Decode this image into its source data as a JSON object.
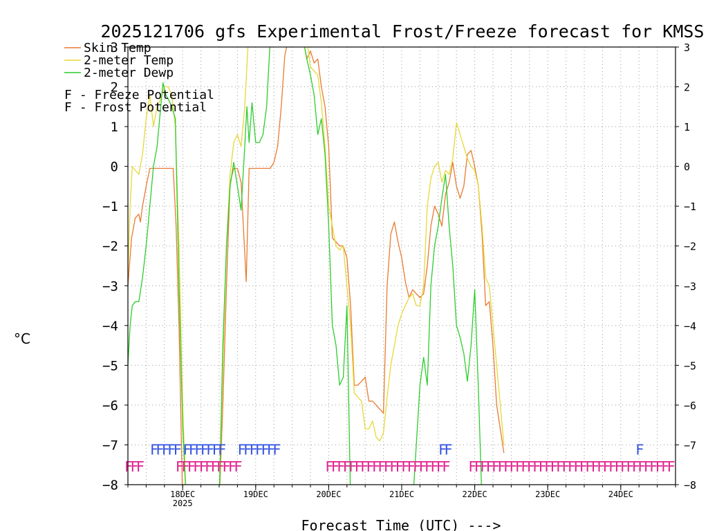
{
  "chart_data": {
    "type": "line",
    "title": "2025121706 gfs Experimental Frost/Freeze forecast for KMSS",
    "ylabel": "°C",
    "xlabel": "Forecast Time (UTC) --->",
    "ylim": [
      -8,
      3
    ],
    "xlim": [
      0,
      7.5
    ],
    "yticks": [
      3,
      2,
      1,
      0,
      -1,
      -2,
      -3,
      -4,
      -5,
      -6,
      -7,
      -8
    ],
    "ytick_labels_left": [
      "3",
      "2",
      "1",
      "0",
      "−1",
      "−2",
      "−3",
      "−4",
      "−5",
      "−6",
      "−7",
      "−8"
    ],
    "ytick_labels_right": [
      "3",
      "2",
      "1",
      "0",
      "−1",
      "−2",
      "−3",
      "−4",
      "−5",
      "−6",
      "−7",
      "−8"
    ],
    "xticks": [
      {
        "x": 0.75,
        "label": "18DEC",
        "sublabel": "2025"
      },
      {
        "x": 1.75,
        "label": "19DEC",
        "sublabel": ""
      },
      {
        "x": 2.75,
        "label": "20DEC",
        "sublabel": ""
      },
      {
        "x": 3.75,
        "label": "21DEC",
        "sublabel": ""
      },
      {
        "x": 4.75,
        "label": "22DEC",
        "sublabel": ""
      },
      {
        "x": 5.75,
        "label": "23DEC",
        "sublabel": ""
      },
      {
        "x": 6.75,
        "label": "24DEC",
        "sublabel": ""
      }
    ],
    "grid": true,
    "x_units": "days since 2025-12-17 06 UTC",
    "legend": [
      {
        "label": "Skin Temp",
        "color": "#e87a30"
      },
      {
        "label": "2-meter Temp",
        "color": "#e6d838"
      },
      {
        "label": "2-meter Dewp",
        "color": "#2ccc2c"
      }
    ],
    "flag_legend": [
      {
        "glyph": "F",
        "label": " - Freeze Potential",
        "color": "#e0208c"
      },
      {
        "glyph": "F",
        "label": " - Frost Potential",
        "color": "#3050e0"
      }
    ],
    "series": [
      {
        "name": "Skin Temp",
        "color": "#e87a30",
        "points": [
          [
            0,
            -3.0
          ],
          [
            0.05,
            -1.8
          ],
          [
            0.1,
            -1.3
          ],
          [
            0.15,
            -1.2
          ],
          [
            0.17,
            -1.4
          ],
          [
            0.2,
            -1.0
          ],
          [
            0.25,
            -0.5
          ],
          [
            0.3,
            -0.05
          ],
          [
            0.35,
            -0.05
          ],
          [
            0.45,
            -0.05
          ],
          [
            0.55,
            -0.05
          ],
          [
            0.62,
            -0.05
          ],
          [
            0.66,
            -1.5
          ],
          [
            0.7,
            -4.0
          ],
          [
            0.75,
            -8.5
          ],
          [
            1.25,
            -8.5
          ],
          [
            1.3,
            -6.0
          ],
          [
            1.35,
            -3.0
          ],
          [
            1.4,
            -0.4
          ],
          [
            1.45,
            -0.05
          ],
          [
            1.5,
            -0.05
          ],
          [
            1.55,
            -0.4
          ],
          [
            1.62,
            -2.9
          ],
          [
            1.66,
            -0.05
          ],
          [
            1.75,
            -0.05
          ],
          [
            1.85,
            -0.05
          ],
          [
            1.95,
            -0.05
          ],
          [
            2.0,
            0.1
          ],
          [
            2.05,
            0.5
          ],
          [
            2.1,
            1.5
          ],
          [
            2.15,
            2.8
          ],
          [
            2.2,
            3.2
          ],
          [
            2.4,
            3.2
          ],
          [
            2.45,
            2.7
          ],
          [
            2.5,
            2.9
          ],
          [
            2.55,
            2.6
          ],
          [
            2.6,
            2.7
          ],
          [
            2.65,
            2.0
          ],
          [
            2.7,
            1.5
          ],
          [
            2.75,
            0.5
          ],
          [
            2.8,
            -1.8
          ],
          [
            2.85,
            -1.9
          ],
          [
            2.9,
            -2.0
          ],
          [
            2.95,
            -2.0
          ],
          [
            3.0,
            -2.3
          ],
          [
            3.05,
            -3.5
          ],
          [
            3.1,
            -5.5
          ],
          [
            3.15,
            -5.5
          ],
          [
            3.2,
            -5.4
          ],
          [
            3.25,
            -5.3
          ],
          [
            3.3,
            -5.9
          ],
          [
            3.35,
            -5.9
          ],
          [
            3.4,
            -6.0
          ],
          [
            3.45,
            -6.1
          ],
          [
            3.5,
            -6.2
          ],
          [
            3.55,
            -3.0
          ],
          [
            3.6,
            -1.7
          ],
          [
            3.65,
            -1.4
          ],
          [
            3.7,
            -1.9
          ],
          [
            3.75,
            -2.3
          ],
          [
            3.8,
            -2.9
          ],
          [
            3.85,
            -3.3
          ],
          [
            3.9,
            -3.1
          ],
          [
            3.95,
            -3.2
          ],
          [
            4.0,
            -3.3
          ],
          [
            4.05,
            -3.2
          ],
          [
            4.1,
            -2.5
          ],
          [
            4.15,
            -1.5
          ],
          [
            4.2,
            -1.0
          ],
          [
            4.25,
            -1.2
          ],
          [
            4.3,
            -1.5
          ],
          [
            4.35,
            -0.7
          ],
          [
            4.4,
            -0.4
          ],
          [
            4.45,
            0.1
          ],
          [
            4.5,
            -0.5
          ],
          [
            4.55,
            -0.8
          ],
          [
            4.6,
            -0.5
          ],
          [
            4.65,
            0.3
          ],
          [
            4.7,
            0.4
          ],
          [
            4.75,
            0.0
          ],
          [
            4.8,
            -0.5
          ],
          [
            4.85,
            -1.7
          ],
          [
            4.9,
            -3.5
          ],
          [
            4.95,
            -3.4
          ],
          [
            5.0,
            -4.5
          ],
          [
            5.05,
            -6.0
          ],
          [
            5.1,
            -6.6
          ],
          [
            5.15,
            -7.2
          ]
        ]
      },
      {
        "name": "2-meter Temp",
        "color": "#e6d838",
        "points": [
          [
            0,
            -2.7
          ],
          [
            0.03,
            -1.0
          ],
          [
            0.06,
            0.0
          ],
          [
            0.1,
            -0.1
          ],
          [
            0.15,
            -0.2
          ],
          [
            0.2,
            0.3
          ],
          [
            0.25,
            1.2
          ],
          [
            0.3,
            1.8
          ],
          [
            0.35,
            1.0
          ],
          [
            0.4,
            1.5
          ],
          [
            0.45,
            1.7
          ],
          [
            0.5,
            2.0
          ],
          [
            0.55,
            2.0
          ],
          [
            0.6,
            1.8
          ],
          [
            0.65,
            1.0
          ],
          [
            0.7,
            -2.0
          ],
          [
            0.75,
            -6.0
          ],
          [
            0.8,
            -8.5
          ],
          [
            1.25,
            -8.5
          ],
          [
            1.3,
            -5.0
          ],
          [
            1.35,
            -2.0
          ],
          [
            1.4,
            -0.2
          ],
          [
            1.45,
            0.6
          ],
          [
            1.5,
            0.8
          ],
          [
            1.55,
            0.5
          ],
          [
            1.6,
            1.5
          ],
          [
            1.65,
            3.2
          ],
          [
            2.35,
            3.2
          ],
          [
            2.4,
            3.0
          ],
          [
            2.45,
            3.2
          ],
          [
            2.5,
            2.5
          ],
          [
            2.55,
            2.4
          ],
          [
            2.6,
            2.3
          ],
          [
            2.65,
            1.6
          ],
          [
            2.7,
            0.5
          ],
          [
            2.75,
            -1.0
          ],
          [
            2.8,
            -1.5
          ],
          [
            2.85,
            -2.0
          ],
          [
            2.9,
            -2.1
          ],
          [
            2.95,
            -2.0
          ],
          [
            3.0,
            -3.0
          ],
          [
            3.05,
            -4.0
          ],
          [
            3.1,
            -5.7
          ],
          [
            3.15,
            -5.8
          ],
          [
            3.2,
            -5.9
          ],
          [
            3.25,
            -6.6
          ],
          [
            3.3,
            -6.6
          ],
          [
            3.35,
            -6.4
          ],
          [
            3.4,
            -6.8
          ],
          [
            3.45,
            -6.9
          ],
          [
            3.5,
            -6.7
          ],
          [
            3.55,
            -5.8
          ],
          [
            3.6,
            -5.0
          ],
          [
            3.65,
            -4.5
          ],
          [
            3.7,
            -4.0
          ],
          [
            3.75,
            -3.7
          ],
          [
            3.8,
            -3.5
          ],
          [
            3.85,
            -3.3
          ],
          [
            3.9,
            -3.2
          ],
          [
            3.95,
            -3.5
          ],
          [
            4.0,
            -3.5
          ],
          [
            4.05,
            -3.0
          ],
          [
            4.1,
            -1.0
          ],
          [
            4.15,
            -0.3
          ],
          [
            4.2,
            0.0
          ],
          [
            4.25,
            0.1
          ],
          [
            4.3,
            -0.4
          ],
          [
            4.35,
            -0.1
          ],
          [
            4.4,
            -0.2
          ],
          [
            4.45,
            0.2
          ],
          [
            4.5,
            1.1
          ],
          [
            4.55,
            0.8
          ],
          [
            4.6,
            0.5
          ],
          [
            4.65,
            0.2
          ],
          [
            4.7,
            0.0
          ],
          [
            4.75,
            -0.1
          ],
          [
            4.8,
            -0.5
          ],
          [
            4.85,
            -1.5
          ],
          [
            4.9,
            -2.8
          ],
          [
            4.95,
            -3.0
          ],
          [
            5.0,
            -4.0
          ],
          [
            5.05,
            -5.0
          ],
          [
            5.1,
            -6.0
          ],
          [
            5.15,
            -7.0
          ]
        ]
      },
      {
        "name": "2-meter Dewp",
        "color": "#2ccc2c",
        "points": [
          [
            0,
            -5.0
          ],
          [
            0.03,
            -4.0
          ],
          [
            0.06,
            -3.5
          ],
          [
            0.1,
            -3.4
          ],
          [
            0.15,
            -3.4
          ],
          [
            0.2,
            -2.8
          ],
          [
            0.25,
            -2.0
          ],
          [
            0.3,
            -1.0
          ],
          [
            0.35,
            0.0
          ],
          [
            0.4,
            0.5
          ],
          [
            0.45,
            1.5
          ],
          [
            0.48,
            2.1
          ],
          [
            0.52,
            1.8
          ],
          [
            0.55,
            1.7
          ],
          [
            0.6,
            1.5
          ],
          [
            0.65,
            1.2
          ],
          [
            0.7,
            -3.0
          ],
          [
            0.75,
            -6.5
          ],
          [
            0.8,
            -8.5
          ],
          [
            1.25,
            -8.5
          ],
          [
            1.3,
            -4.5
          ],
          [
            1.35,
            -2.0
          ],
          [
            1.4,
            -0.5
          ],
          [
            1.45,
            0.1
          ],
          [
            1.5,
            -0.5
          ],
          [
            1.55,
            -1.1
          ],
          [
            1.6,
            0.5
          ],
          [
            1.63,
            1.5
          ],
          [
            1.66,
            0.6
          ],
          [
            1.7,
            1.6
          ],
          [
            1.75,
            0.6
          ],
          [
            1.8,
            0.6
          ],
          [
            1.85,
            0.8
          ],
          [
            1.9,
            1.5
          ],
          [
            1.95,
            3.2
          ],
          [
            2.4,
            3.2
          ],
          [
            2.45,
            2.7
          ],
          [
            2.5,
            2.3
          ],
          [
            2.55,
            1.8
          ],
          [
            2.6,
            0.8
          ],
          [
            2.65,
            1.2
          ],
          [
            2.7,
            0.3
          ],
          [
            2.75,
            -1.5
          ],
          [
            2.8,
            -4.0
          ],
          [
            2.85,
            -4.5
          ],
          [
            2.9,
            -5.5
          ],
          [
            2.95,
            -5.3
          ],
          [
            3.0,
            -3.5
          ],
          [
            3.05,
            -8.5
          ],
          [
            3.9,
            -8.5
          ],
          [
            3.95,
            -7.0
          ],
          [
            4.0,
            -5.5
          ],
          [
            4.05,
            -4.8
          ],
          [
            4.1,
            -5.5
          ],
          [
            4.15,
            -3.0
          ],
          [
            4.2,
            -2.0
          ],
          [
            4.25,
            -1.5
          ],
          [
            4.3,
            -0.8
          ],
          [
            4.35,
            -0.2
          ],
          [
            4.4,
            -1.5
          ],
          [
            4.45,
            -2.5
          ],
          [
            4.5,
            -4.0
          ],
          [
            4.55,
            -4.3
          ],
          [
            4.6,
            -4.7
          ],
          [
            4.65,
            -5.4
          ],
          [
            4.7,
            -4.5
          ],
          [
            4.75,
            -3.1
          ],
          [
            4.8,
            -5.6
          ],
          [
            4.85,
            -8.5
          ]
        ]
      }
    ],
    "freeze_flags": {
      "glyph": "F",
      "color": "#e0208c",
      "x_positions": [
        0.0,
        0.08,
        0.16,
        0.7,
        0.78,
        0.86,
        0.94,
        1.02,
        1.1,
        1.18,
        1.26,
        1.34,
        1.42,
        1.5,
        2.75,
        2.83,
        2.91,
        2.99,
        3.07,
        3.15,
        3.23,
        3.31,
        3.39,
        3.47,
        3.55,
        3.63,
        3.71,
        3.79,
        3.87,
        3.95,
        4.03,
        4.11,
        4.19,
        4.27,
        4.35,
        4.71,
        4.79,
        4.87,
        4.95,
        5.03,
        5.11,
        5.19,
        5.27,
        5.35,
        5.43,
        5.51,
        5.59,
        5.67,
        5.75,
        5.83,
        5.91,
        5.99,
        6.07,
        6.15,
        6.23,
        6.31,
        6.39,
        6.47,
        6.55,
        6.63,
        6.71,
        6.79,
        6.87,
        6.95,
        7.03,
        7.11,
        7.19,
        7.27,
        7.35,
        7.43
      ]
    },
    "frost_flags": {
      "glyph": "F",
      "color": "#3050e0",
      "x_positions": [
        0.35,
        0.43,
        0.51,
        0.59,
        0.67,
        0.8,
        0.88,
        0.96,
        1.04,
        1.12,
        1.2,
        1.28,
        1.55,
        1.63,
        1.71,
        1.79,
        1.87,
        1.95,
        2.03,
        4.3,
        4.38,
        7.0
      ]
    }
  }
}
